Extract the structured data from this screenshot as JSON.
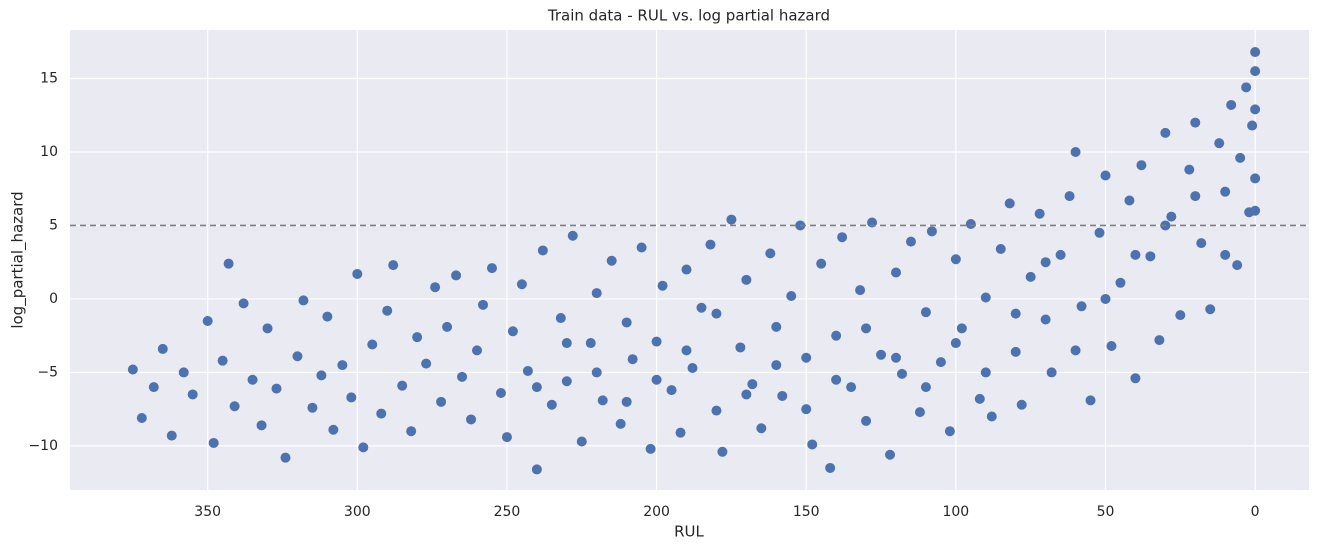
{
  "chart_data": {
    "type": "scatter",
    "title": "Train data - RUL vs. log partial hazard",
    "x_label": "RUL",
    "y_label": "log_partial_hazard",
    "color": "#4c72b0",
    "grid": true,
    "xlim": [
      396,
      -18
    ],
    "ylim": [
      -13,
      18.3
    ],
    "xticks": [
      350,
      300,
      250,
      200,
      150,
      100,
      50,
      0
    ],
    "yticks": [
      {
        "value": -10,
        "label": "−10"
      },
      {
        "value": -5,
        "label": "−5"
      },
      0,
      5,
      10,
      15
    ],
    "hline": {
      "y": 5,
      "color": "#808080",
      "style": "dashed"
    },
    "x": [
      375,
      372,
      368,
      365,
      362,
      358,
      355,
      350,
      348,
      345,
      343,
      341,
      338,
      335,
      332,
      330,
      327,
      324,
      320,
      318,
      315,
      312,
      310,
      308,
      305,
      302,
      300,
      298,
      295,
      292,
      290,
      288,
      285,
      282,
      280,
      277,
      274,
      272,
      270,
      267,
      265,
      262,
      260,
      258,
      255,
      252,
      250,
      248,
      245,
      243,
      240,
      238,
      235,
      232,
      230,
      228,
      225,
      222,
      220,
      218,
      215,
      212,
      210,
      208,
      205,
      202,
      200,
      198,
      195,
      192,
      190,
      188,
      185,
      182,
      180,
      178,
      175,
      172,
      170,
      168,
      165,
      162,
      160,
      158,
      155,
      152,
      150,
      148,
      145,
      142,
      140,
      138,
      135,
      132,
      130,
      128,
      125,
      122,
      120,
      118,
      115,
      112,
      110,
      108,
      105,
      102,
      100,
      98,
      95,
      92,
      90,
      88,
      85,
      82,
      80,
      78,
      75,
      72,
      70,
      68,
      65,
      62,
      60,
      58,
      55,
      52,
      50,
      48,
      45,
      42,
      40,
      38,
      35,
      32,
      30,
      28,
      25,
      22,
      20,
      18,
      15,
      12,
      10,
      8,
      6,
      5,
      3,
      2,
      1,
      0,
      0,
      0,
      0,
      0,
      240,
      230,
      220,
      210,
      200,
      190,
      180,
      170,
      160,
      150,
      140,
      130,
      120,
      110,
      100,
      90,
      80,
      70,
      60,
      50,
      40,
      30,
      20,
      10
    ],
    "values": [
      -4.8,
      -8.1,
      -6.0,
      -3.4,
      -9.3,
      -5.0,
      -6.5,
      -1.5,
      -9.8,
      -4.2,
      2.4,
      -7.3,
      -0.3,
      -5.5,
      -8.6,
      -2.0,
      -6.1,
      -10.8,
      -3.9,
      -0.1,
      -7.4,
      -5.2,
      -1.2,
      -8.9,
      -4.5,
      -6.7,
      1.7,
      -10.1,
      -3.1,
      -7.8,
      -0.8,
      2.3,
      -5.9,
      -9.0,
      -2.6,
      -4.4,
      0.8,
      -7.0,
      -1.9,
      1.6,
      -5.3,
      -8.2,
      -3.5,
      -0.4,
      2.1,
      -6.4,
      -9.4,
      -2.2,
      1.0,
      -4.9,
      -11.6,
      3.3,
      -7.2,
      -1.3,
      -5.6,
      4.3,
      -9.7,
      -3.0,
      0.4,
      -6.9,
      2.6,
      -8.5,
      -1.6,
      -4.1,
      3.5,
      -10.2,
      -2.9,
      0.9,
      -6.2,
      -9.1,
      2.0,
      -4.7,
      -0.6,
      3.7,
      -7.6,
      -10.4,
      5.4,
      -3.3,
      1.3,
      -5.8,
      -8.8,
      3.1,
      -1.9,
      -6.6,
      0.2,
      5.0,
      -4.0,
      -9.9,
      2.4,
      -11.5,
      -2.5,
      4.2,
      -6.0,
      0.6,
      -8.3,
      5.2,
      -3.8,
      -10.6,
      1.8,
      -5.1,
      3.9,
      -7.7,
      -0.9,
      4.6,
      -4.3,
      -9.0,
      2.7,
      -2.0,
      5.1,
      -6.8,
      0.1,
      -8.0,
      3.4,
      6.5,
      -3.6,
      -7.2,
      1.5,
      5.8,
      -1.4,
      -5.0,
      3.0,
      7.0,
      10.0,
      -0.5,
      -6.9,
      4.5,
      8.4,
      -3.2,
      1.1,
      6.7,
      -5.4,
      9.1,
      2.9,
      -2.8,
      11.3,
      5.6,
      -1.1,
      8.8,
      12.0,
      3.8,
      -0.7,
      10.6,
      7.3,
      13.2,
      2.3,
      9.6,
      14.4,
      5.9,
      11.8,
      16.8,
      15.5,
      12.9,
      8.2,
      6.0,
      -6.0,
      -3.0,
      -5.0,
      -7.0,
      -5.5,
      -3.5,
      -1.0,
      -6.5,
      -4.5,
      -7.5,
      -5.5,
      -2.0,
      -4.0,
      -6.0,
      -3.0,
      -5.0,
      -1.0,
      2.5,
      -3.5,
      0.0,
      3.0,
      5.0,
      7.0,
      3.0
    ]
  }
}
